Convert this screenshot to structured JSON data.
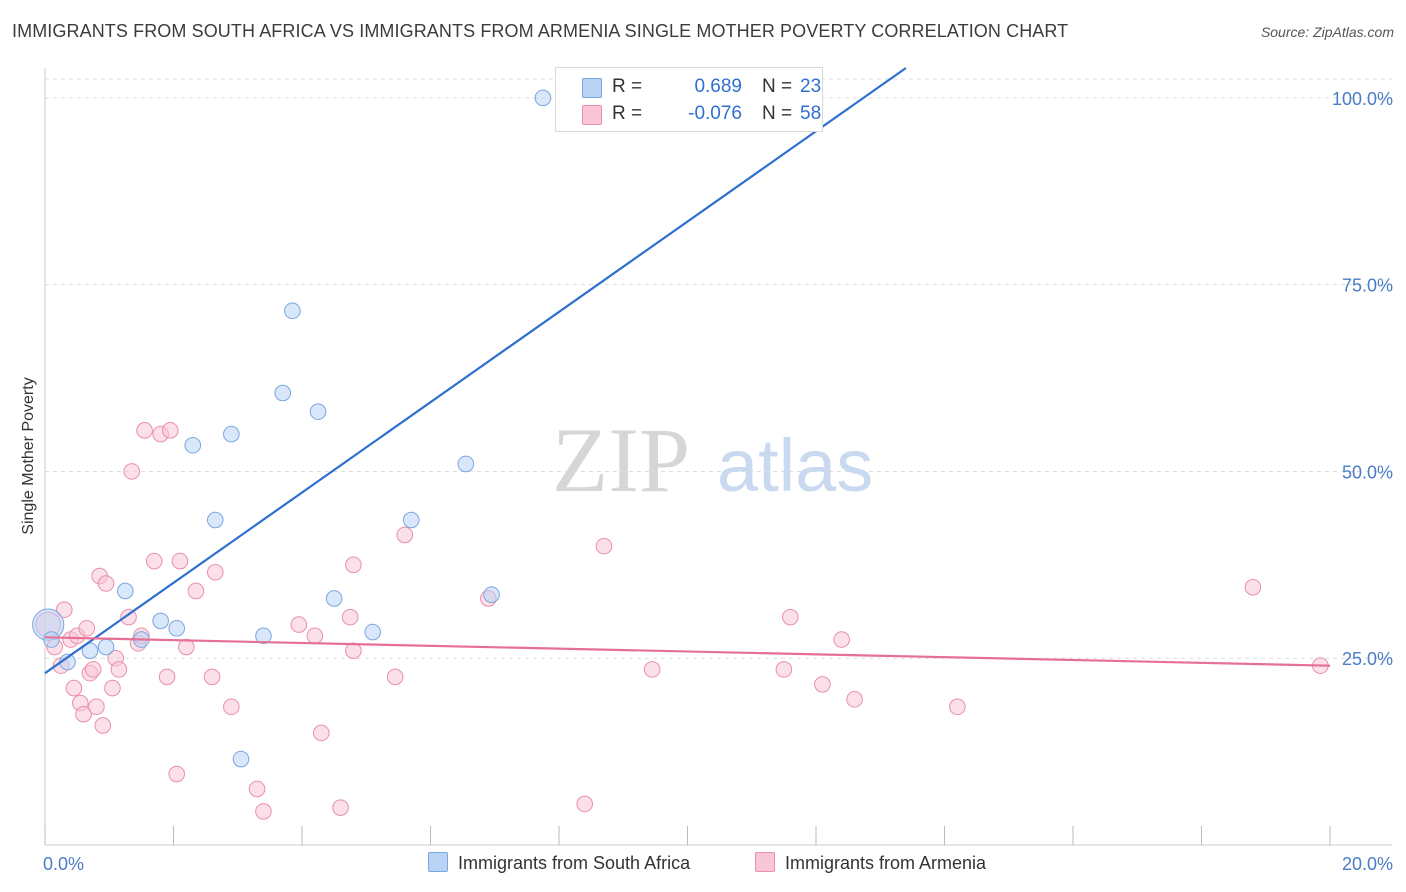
{
  "title": "IMMIGRANTS FROM SOUTH AFRICA VS IMMIGRANTS FROM ARMENIA SINGLE MOTHER POVERTY CORRELATION CHART",
  "source": "Source: ZipAtlas.com",
  "watermark": {
    "zip": "ZIP",
    "atlas": "atlas"
  },
  "colors": {
    "blue_fill": "#b9d3f5",
    "blue_stroke": "#7aa6e0",
    "blue_line": "#2f6fd0",
    "pink_fill": "#f8c6d5",
    "pink_stroke": "#ea8fab",
    "pink_line": "#e66f96",
    "grid": "#dddddd",
    "axis_text": "#4a7cc7"
  },
  "legend": {
    "rows": [
      {
        "r_label": "R =",
        "r_value": "0.689",
        "n_label": "N =",
        "n_value": "23"
      },
      {
        "r_label": "R =",
        "r_value": "-0.076",
        "n_label": "N =",
        "n_value": "58"
      }
    ]
  },
  "chart_data": {
    "type": "scatter",
    "title": "IMMIGRANTS FROM SOUTH AFRICA VS IMMIGRANTS FROM ARMENIA SINGLE MOTHER POVERTY CORRELATION CHART",
    "xlabel": "",
    "ylabel": "Single Mother Poverty",
    "xlim": [
      0,
      20
    ],
    "ylim": [
      0,
      104
    ],
    "x_tick_labels": [
      "0.0%",
      "20.0%"
    ],
    "y_ticks": [
      25,
      50,
      75,
      100
    ],
    "y_tick_labels": [
      "25.0%",
      "50.0%",
      "75.0%",
      "100.0%"
    ],
    "grid": true,
    "legend_position": "bottom",
    "series": [
      {
        "name": "Immigrants from South Africa",
        "color": "blue",
        "trend": {
          "x0": 0,
          "y0": 23.0,
          "x1": 13.4,
          "y1": 104
        },
        "points": [
          [
            0.05,
            29.5,
            20
          ],
          [
            0.1,
            27.5,
            10
          ],
          [
            0.35,
            24.5,
            10
          ],
          [
            0.7,
            26.0,
            10
          ],
          [
            0.95,
            26.5,
            10
          ],
          [
            1.25,
            34.0,
            10
          ],
          [
            1.5,
            27.5,
            10
          ],
          [
            1.8,
            30.0,
            10
          ],
          [
            2.05,
            29.0,
            10
          ],
          [
            2.3,
            53.5,
            10
          ],
          [
            2.65,
            43.5,
            10
          ],
          [
            2.9,
            55.0,
            10
          ],
          [
            3.05,
            11.5,
            10
          ],
          [
            3.4,
            28.0,
            10
          ],
          [
            3.7,
            60.5,
            10
          ],
          [
            3.85,
            71.5,
            10
          ],
          [
            4.25,
            58.0,
            10
          ],
          [
            4.5,
            33.0,
            10
          ],
          [
            5.1,
            28.5,
            10
          ],
          [
            5.7,
            43.5,
            10
          ],
          [
            6.55,
            51.0,
            10
          ],
          [
            6.95,
            33.5,
            10
          ],
          [
            7.75,
            100.0,
            10
          ]
        ]
      },
      {
        "name": "Immigrants from Armenia",
        "color": "pink",
        "trend": {
          "x0": 0,
          "y0": 27.8,
          "x1": 20,
          "y1": 24.0
        },
        "points": [
          [
            0.05,
            29.5,
            16
          ],
          [
            0.15,
            26.5,
            10
          ],
          [
            0.25,
            24.0,
            10
          ],
          [
            0.3,
            31.5,
            10
          ],
          [
            0.4,
            27.5,
            10
          ],
          [
            0.45,
            21.0,
            10
          ],
          [
            0.5,
            28.0,
            10
          ],
          [
            0.55,
            19.0,
            10
          ],
          [
            0.6,
            17.5,
            10
          ],
          [
            0.65,
            29.0,
            10
          ],
          [
            0.7,
            23.0,
            10
          ],
          [
            0.75,
            23.5,
            10
          ],
          [
            0.8,
            18.5,
            10
          ],
          [
            0.85,
            36.0,
            10
          ],
          [
            0.9,
            16.0,
            10
          ],
          [
            0.95,
            35.0,
            10
          ],
          [
            1.05,
            21.0,
            10
          ],
          [
            1.1,
            25.0,
            10
          ],
          [
            1.15,
            23.5,
            10
          ],
          [
            1.3,
            30.5,
            10
          ],
          [
            1.35,
            50.0,
            10
          ],
          [
            1.45,
            27.0,
            10
          ],
          [
            1.5,
            28.0,
            10
          ],
          [
            1.55,
            55.5,
            10
          ],
          [
            1.7,
            38.0,
            10
          ],
          [
            1.8,
            55.0,
            10
          ],
          [
            1.9,
            22.5,
            10
          ],
          [
            1.95,
            55.5,
            10
          ],
          [
            2.05,
            9.5,
            10
          ],
          [
            2.1,
            38.0,
            10
          ],
          [
            2.2,
            26.5,
            10
          ],
          [
            2.35,
            34.0,
            10
          ],
          [
            2.6,
            22.5,
            10
          ],
          [
            2.65,
            36.5,
            10
          ],
          [
            2.9,
            18.5,
            10
          ],
          [
            3.3,
            7.5,
            10
          ],
          [
            3.4,
            4.5,
            10
          ],
          [
            3.95,
            29.5,
            10
          ],
          [
            4.2,
            28.0,
            10
          ],
          [
            4.3,
            15.0,
            10
          ],
          [
            4.6,
            5.0,
            10
          ],
          [
            4.75,
            30.5,
            10
          ],
          [
            4.8,
            26.0,
            10
          ],
          [
            4.8,
            37.5,
            10
          ],
          [
            5.45,
            22.5,
            10
          ],
          [
            5.6,
            41.5,
            10
          ],
          [
            6.9,
            33.0,
            10
          ],
          [
            8.4,
            5.5,
            10
          ],
          [
            8.7,
            40.0,
            10
          ],
          [
            9.45,
            23.5,
            10
          ],
          [
            11.5,
            23.5,
            10
          ],
          [
            11.6,
            30.5,
            10
          ],
          [
            12.1,
            21.5,
            10
          ],
          [
            12.4,
            27.5,
            10
          ],
          [
            12.6,
            19.5,
            10
          ],
          [
            14.2,
            18.5,
            10
          ],
          [
            18.8,
            34.5,
            10
          ],
          [
            19.85,
            24.0,
            10
          ]
        ]
      }
    ]
  }
}
